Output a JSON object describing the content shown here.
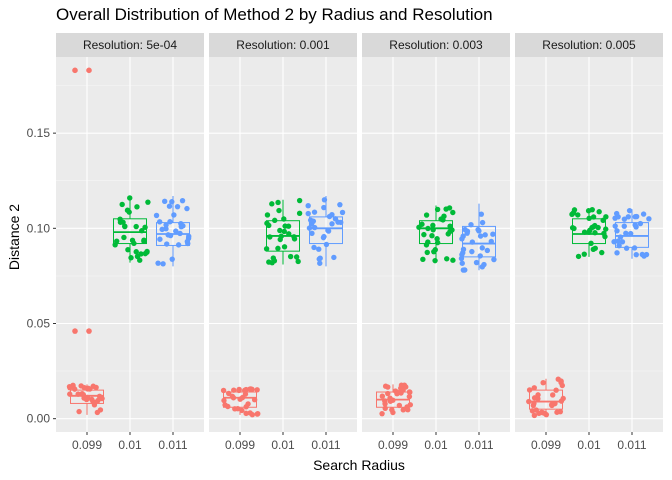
{
  "chart_data": {
    "type": "boxplot",
    "title": "Overall Distribution of Method 2 by Radius and Resolution",
    "xlabel": "Search Radius",
    "ylabel": "Distance 2",
    "ylim": [
      -0.007,
      0.19
    ],
    "yticks": [
      0.0,
      0.05,
      0.1,
      0.15
    ],
    "ytick_labels": [
      "0.00",
      "0.05",
      "0.10",
      "0.15"
    ],
    "categories": [
      "0.099",
      "0.01",
      "0.011"
    ],
    "category_colors": [
      "#F8766D",
      "#00BA38",
      "#619CFF"
    ],
    "grid": true,
    "legend": "none",
    "panels": [
      {
        "label": "Resolution: 5e-04",
        "boxes": [
          {
            "category": "0.099",
            "min": 0.002,
            "q1": 0.008,
            "median": 0.012,
            "q3": 0.015,
            "max": 0.018,
            "outliers": [
              0.046,
              0.046,
              0.183,
              0.183
            ]
          },
          {
            "category": "0.01",
            "min": 0.082,
            "q1": 0.092,
            "median": 0.098,
            "q3": 0.105,
            "max": 0.116,
            "outliers": []
          },
          {
            "category": "0.011",
            "min": 0.08,
            "q1": 0.091,
            "median": 0.097,
            "q3": 0.103,
            "max": 0.117,
            "outliers": []
          }
        ]
      },
      {
        "label": "Resolution: 0.001",
        "boxes": [
          {
            "category": "0.099",
            "min": 0.002,
            "q1": 0.006,
            "median": 0.011,
            "q3": 0.014,
            "max": 0.016,
            "outliers": []
          },
          {
            "category": "0.01",
            "min": 0.081,
            "q1": 0.088,
            "median": 0.096,
            "q3": 0.104,
            "max": 0.115,
            "outliers": []
          },
          {
            "category": "0.011",
            "min": 0.08,
            "q1": 0.092,
            "median": 0.1,
            "q3": 0.106,
            "max": 0.117,
            "outliers": []
          }
        ]
      },
      {
        "label": "Resolution: 0.003",
        "boxes": [
          {
            "category": "0.099",
            "min": 0.002,
            "q1": 0.006,
            "median": 0.01,
            "q3": 0.014,
            "max": 0.018,
            "outliers": []
          },
          {
            "category": "0.01",
            "min": 0.083,
            "q1": 0.092,
            "median": 0.1,
            "q3": 0.104,
            "max": 0.112,
            "outliers": []
          },
          {
            "category": "0.011",
            "min": 0.078,
            "q1": 0.085,
            "median": 0.092,
            "q3": 0.101,
            "max": 0.113,
            "outliers": []
          }
        ]
      },
      {
        "label": "Resolution: 0.005",
        "boxes": [
          {
            "category": "0.099",
            "min": 0.001,
            "q1": 0.005,
            "median": 0.009,
            "q3": 0.015,
            "max": 0.021,
            "outliers": []
          },
          {
            "category": "0.01",
            "min": 0.085,
            "q1": 0.092,
            "median": 0.097,
            "q3": 0.105,
            "max": 0.11,
            "outliers": []
          },
          {
            "category": "0.011",
            "min": 0.084,
            "q1": 0.09,
            "median": 0.096,
            "q3": 0.103,
            "max": 0.11,
            "outliers": []
          }
        ]
      }
    ]
  }
}
